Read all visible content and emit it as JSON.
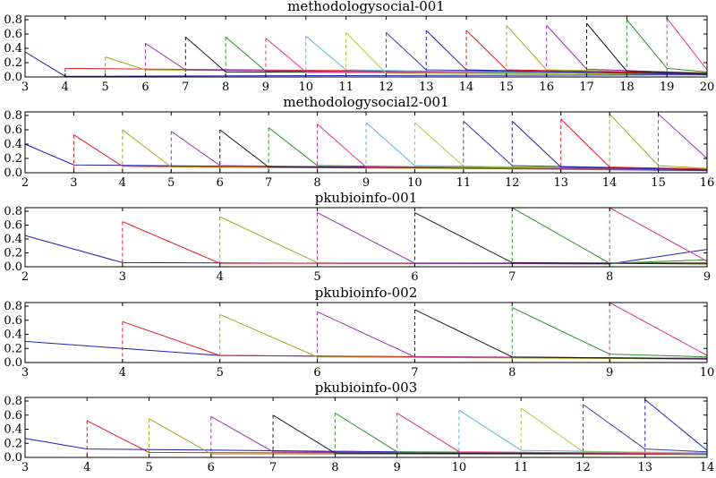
{
  "colors": [
    "#1f1fb4",
    "#e41a1c",
    "#a6a61a",
    "#9b30b4",
    "#1a1a1a",
    "#2f8f2f",
    "#e0338a",
    "#5fb4d8",
    "#b4c83c",
    "#3a3aa8"
  ],
  "chart_data": [
    {
      "type": "line",
      "title": "methodologysocial-001",
      "xlim": [
        3,
        20
      ],
      "ylim": [
        0,
        0.8
      ],
      "xticks": [
        "3",
        "4",
        "5",
        "6",
        "7",
        "8",
        "9",
        "10",
        "11",
        "12",
        "13",
        "14",
        "15",
        "16",
        "17",
        "18",
        "19",
        "20"
      ],
      "yticks": [
        "0.0",
        "0.2",
        "0.4",
        "0.6",
        "0.8"
      ],
      "series": [
        {
          "x": [
            3,
            4,
            20
          ],
          "values": [
            0.35,
            0.01,
            0.03
          ]
        },
        {
          "x": [
            4,
            20
          ],
          "values": [
            0.12,
            0.05
          ]
        },
        {
          "x": [
            5,
            6,
            20
          ],
          "values": [
            0.28,
            0.1,
            0.04
          ]
        },
        {
          "x": [
            6,
            7,
            20
          ],
          "values": [
            0.47,
            0.1,
            0.03
          ]
        },
        {
          "x": [
            7,
            8,
            20
          ],
          "values": [
            0.56,
            0.07,
            0.05
          ]
        },
        {
          "x": [
            8,
            9,
            20
          ],
          "values": [
            0.56,
            0.08,
            0.04
          ]
        },
        {
          "x": [
            9,
            10,
            20
          ],
          "values": [
            0.54,
            0.07,
            0.05
          ]
        },
        {
          "x": [
            10,
            11,
            20
          ],
          "values": [
            0.57,
            0.1,
            0.03
          ]
        },
        {
          "x": [
            11,
            12,
            20
          ],
          "values": [
            0.62,
            0.05,
            0.04
          ]
        },
        {
          "x": [
            12,
            13,
            20
          ],
          "values": [
            0.62,
            0.1,
            0.04
          ]
        },
        {
          "x": [
            13,
            14,
            20
          ],
          "values": [
            0.65,
            0.1,
            0.03
          ]
        },
        {
          "x": [
            14,
            15,
            20
          ],
          "values": [
            0.65,
            0.1,
            0.05
          ]
        },
        {
          "x": [
            15,
            16,
            20
          ],
          "values": [
            0.72,
            0.1,
            0.06
          ]
        },
        {
          "x": [
            16,
            17,
            20
          ],
          "values": [
            0.72,
            0.11,
            0.05
          ]
        },
        {
          "x": [
            17,
            18,
            20
          ],
          "values": [
            0.75,
            0.08,
            0.05
          ]
        },
        {
          "x": [
            18,
            19,
            20
          ],
          "values": [
            0.8,
            0.12,
            0.07
          ]
        },
        {
          "x": [
            19,
            20
          ],
          "values": [
            0.82,
            0.1
          ]
        }
      ]
    },
    {
      "type": "line",
      "title": "methodologysocial2-001",
      "xlim": [
        2,
        16
      ],
      "ylim": [
        0,
        0.8
      ],
      "xticks": [
        "2",
        "3",
        "4",
        "5",
        "6",
        "7",
        "8",
        "9",
        "10",
        "11",
        "12",
        "13",
        "14",
        "15",
        "16"
      ],
      "yticks": [
        "0.0",
        "0.2",
        "0.4",
        "0.6",
        "0.8"
      ],
      "series": [
        {
          "x": [
            2,
            3,
            16
          ],
          "values": [
            0.4,
            0.11,
            0.03
          ]
        },
        {
          "x": [
            3,
            4,
            16
          ],
          "values": [
            0.53,
            0.09,
            0.05
          ]
        },
        {
          "x": [
            4,
            5,
            16
          ],
          "values": [
            0.6,
            0.08,
            0.04
          ]
        },
        {
          "x": [
            5,
            6,
            16
          ],
          "values": [
            0.58,
            0.1,
            0.04
          ]
        },
        {
          "x": [
            6,
            7,
            16
          ],
          "values": [
            0.6,
            0.08,
            0.05
          ]
        },
        {
          "x": [
            7,
            8,
            16
          ],
          "values": [
            0.63,
            0.1,
            0.04
          ]
        },
        {
          "x": [
            8,
            9,
            16
          ],
          "values": [
            0.68,
            0.08,
            0.05
          ]
        },
        {
          "x": [
            9,
            10,
            16
          ],
          "values": [
            0.7,
            0.1,
            0.05
          ]
        },
        {
          "x": [
            10,
            11,
            16
          ],
          "values": [
            0.7,
            0.09,
            0.06
          ]
        },
        {
          "x": [
            11,
            12,
            16
          ],
          "values": [
            0.72,
            0.1,
            0.05
          ]
        },
        {
          "x": [
            12,
            13,
            16
          ],
          "values": [
            0.72,
            0.08,
            0.04
          ]
        },
        {
          "x": [
            13,
            14,
            16
          ],
          "values": [
            0.75,
            0.08,
            0.05
          ]
        },
        {
          "x": [
            14,
            15,
            16
          ],
          "values": [
            0.82,
            0.1,
            0.06
          ]
        },
        {
          "x": [
            15,
            16
          ],
          "values": [
            0.82,
            0.2
          ]
        }
      ]
    },
    {
      "type": "line",
      "title": "pkubioinfo-001",
      "xlim": [
        2,
        9
      ],
      "ylim": [
        0,
        0.8
      ],
      "xticks": [
        "2",
        "3",
        "4",
        "5",
        "6",
        "7",
        "8",
        "9"
      ],
      "yticks": [
        "0.0",
        "0.2",
        "0.4",
        "0.6",
        "0.8"
      ],
      "series": [
        {
          "x": [
            2,
            3,
            8,
            9
          ],
          "values": [
            0.45,
            0.06,
            0.04,
            0.25
          ]
        },
        {
          "x": [
            3,
            4,
            9
          ],
          "values": [
            0.65,
            0.05,
            0.05
          ]
        },
        {
          "x": [
            4,
            5,
            9
          ],
          "values": [
            0.72,
            0.06,
            0.05
          ]
        },
        {
          "x": [
            5,
            6,
            9
          ],
          "values": [
            0.78,
            0.05,
            0.06
          ]
        },
        {
          "x": [
            6,
            7,
            9
          ],
          "values": [
            0.78,
            0.06,
            0.04
          ]
        },
        {
          "x": [
            7,
            8,
            9
          ],
          "values": [
            0.85,
            0.05,
            0.1
          ]
        },
        {
          "x": [
            8,
            9
          ],
          "values": [
            0.85,
            0.08
          ]
        }
      ]
    },
    {
      "type": "line",
      "title": "pkubioinfo-002",
      "xlim": [
        3,
        10
      ],
      "ylim": [
        0,
        0.8
      ],
      "xticks": [
        "3",
        "4",
        "5",
        "6",
        "7",
        "8",
        "9",
        "10"
      ],
      "yticks": [
        "0.0",
        "0.2",
        "0.4",
        "0.6",
        "0.8"
      ],
      "series": [
        {
          "x": [
            3,
            5,
            10
          ],
          "values": [
            0.3,
            0.1,
            0.05
          ]
        },
        {
          "x": [
            4,
            5,
            10
          ],
          "values": [
            0.58,
            0.1,
            0.06
          ]
        },
        {
          "x": [
            5,
            6,
            10
          ],
          "values": [
            0.68,
            0.08,
            0.05
          ]
        },
        {
          "x": [
            6,
            7,
            10
          ],
          "values": [
            0.72,
            0.08,
            0.06
          ]
        },
        {
          "x": [
            7,
            8,
            10
          ],
          "values": [
            0.75,
            0.08,
            0.05
          ]
        },
        {
          "x": [
            8,
            9,
            10
          ],
          "values": [
            0.78,
            0.12,
            0.08
          ]
        },
        {
          "x": [
            9,
            10
          ],
          "values": [
            0.85,
            0.1
          ]
        }
      ]
    },
    {
      "type": "line",
      "title": "pkubioinfo-003",
      "xlim": [
        3,
        14
      ],
      "ylim": [
        0,
        0.8
      ],
      "xticks": [
        "3",
        "4",
        "5",
        "6",
        "7",
        "8",
        "9",
        "10",
        "11",
        "12",
        "13",
        "14"
      ],
      "yticks": [
        "0.0",
        "0.2",
        "0.4",
        "0.6",
        "0.8"
      ],
      "series": [
        {
          "x": [
            3,
            4,
            14
          ],
          "values": [
            0.27,
            0.12,
            0.04
          ]
        },
        {
          "x": [
            4,
            5,
            14
          ],
          "values": [
            0.52,
            0.07,
            0.05
          ]
        },
        {
          "x": [
            5,
            6,
            14
          ],
          "values": [
            0.55,
            0.05,
            0.04
          ]
        },
        {
          "x": [
            6,
            7,
            14
          ],
          "values": [
            0.58,
            0.08,
            0.05
          ]
        },
        {
          "x": [
            7,
            8,
            14
          ],
          "values": [
            0.6,
            0.06,
            0.05
          ]
        },
        {
          "x": [
            8,
            9,
            14
          ],
          "values": [
            0.63,
            0.08,
            0.06
          ]
        },
        {
          "x": [
            9,
            10,
            14
          ],
          "values": [
            0.63,
            0.08,
            0.05
          ]
        },
        {
          "x": [
            10,
            11,
            14
          ],
          "values": [
            0.67,
            0.1,
            0.06
          ]
        },
        {
          "x": [
            11,
            12,
            14
          ],
          "values": [
            0.7,
            0.08,
            0.07
          ]
        },
        {
          "x": [
            12,
            13,
            14
          ],
          "values": [
            0.75,
            0.12,
            0.08
          ]
        },
        {
          "x": [
            13,
            14
          ],
          "values": [
            0.82,
            0.1
          ]
        }
      ]
    }
  ]
}
